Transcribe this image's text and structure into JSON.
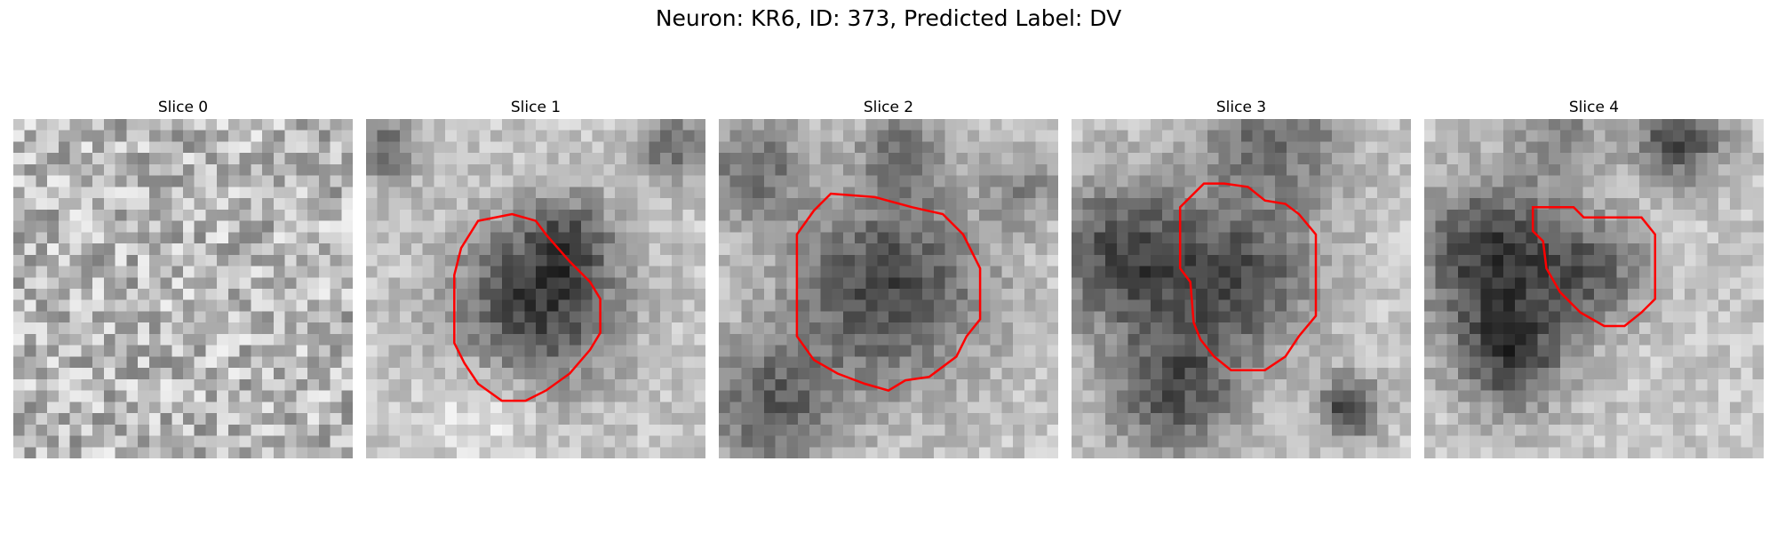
{
  "figure": {
    "suptitle": "Neuron: KR6, ID: 373, Predicted Label: DV",
    "colormap": "gray",
    "contour_color": "#ff0000"
  },
  "slices": [
    {
      "title": "Slice 0",
      "has_contour": false,
      "contour": []
    },
    {
      "title": "Slice 1",
      "has_contour": true,
      "contour": [
        [
          0.26,
          0.46
        ],
        [
          0.26,
          0.66
        ],
        [
          0.29,
          0.72
        ],
        [
          0.33,
          0.78
        ],
        [
          0.4,
          0.83
        ],
        [
          0.47,
          0.83
        ],
        [
          0.53,
          0.8
        ],
        [
          0.6,
          0.75
        ],
        [
          0.66,
          0.68
        ],
        [
          0.69,
          0.63
        ],
        [
          0.69,
          0.53
        ],
        [
          0.66,
          0.48
        ],
        [
          0.6,
          0.42
        ],
        [
          0.53,
          0.34
        ],
        [
          0.5,
          0.3
        ],
        [
          0.43,
          0.28
        ],
        [
          0.33,
          0.3
        ],
        [
          0.28,
          0.38
        ]
      ]
    },
    {
      "title": "Slice 2",
      "has_contour": true,
      "contour": [
        [
          0.23,
          0.34
        ],
        [
          0.23,
          0.64
        ],
        [
          0.28,
          0.71
        ],
        [
          0.35,
          0.75
        ],
        [
          0.43,
          0.78
        ],
        [
          0.5,
          0.8
        ],
        [
          0.55,
          0.77
        ],
        [
          0.62,
          0.76
        ],
        [
          0.7,
          0.7
        ],
        [
          0.73,
          0.64
        ],
        [
          0.77,
          0.59
        ],
        [
          0.77,
          0.44
        ],
        [
          0.72,
          0.34
        ],
        [
          0.66,
          0.28
        ],
        [
          0.57,
          0.26
        ],
        [
          0.46,
          0.23
        ],
        [
          0.33,
          0.22
        ],
        [
          0.28,
          0.27
        ]
      ]
    },
    {
      "title": "Slice 3",
      "has_contour": true,
      "contour": [
        [
          0.32,
          0.26
        ],
        [
          0.32,
          0.44
        ],
        [
          0.35,
          0.48
        ],
        [
          0.36,
          0.6
        ],
        [
          0.38,
          0.65
        ],
        [
          0.42,
          0.7
        ],
        [
          0.47,
          0.74
        ],
        [
          0.57,
          0.74
        ],
        [
          0.63,
          0.7
        ],
        [
          0.67,
          0.64
        ],
        [
          0.72,
          0.58
        ],
        [
          0.72,
          0.34
        ],
        [
          0.67,
          0.28
        ],
        [
          0.63,
          0.25
        ],
        [
          0.57,
          0.24
        ],
        [
          0.52,
          0.2
        ],
        [
          0.45,
          0.19
        ],
        [
          0.39,
          0.19
        ]
      ]
    },
    {
      "title": "Slice 4",
      "has_contour": true,
      "contour": [
        [
          0.32,
          0.26
        ],
        [
          0.32,
          0.33
        ],
        [
          0.35,
          0.36
        ],
        [
          0.36,
          0.44
        ],
        [
          0.4,
          0.51
        ],
        [
          0.46,
          0.57
        ],
        [
          0.53,
          0.61
        ],
        [
          0.59,
          0.61
        ],
        [
          0.64,
          0.57
        ],
        [
          0.68,
          0.53
        ],
        [
          0.68,
          0.34
        ],
        [
          0.64,
          0.29
        ],
        [
          0.47,
          0.29
        ],
        [
          0.44,
          0.26
        ],
        [
          0.42,
          0.26
        ],
        [
          0.37,
          0.26
        ]
      ]
    }
  ]
}
